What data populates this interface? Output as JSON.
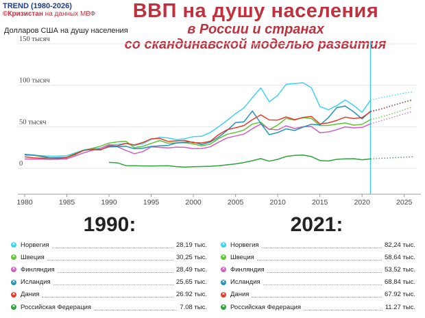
{
  "brand": {
    "line1": "TREND (1980-2026)",
    "line2_strong": "©Кризистан",
    "line2_rest": " на данных МВФ"
  },
  "title": {
    "main": "ВВП на душу населения",
    "sub1": "в России и странах",
    "sub2": "со скандинавской моделью развития"
  },
  "colors": {
    "norway": "#3dd2f0",
    "sweden": "#5cc430",
    "finland": "#cc5fbf",
    "iceland": "#1e93b8",
    "denmark": "#e33a2b",
    "russia": "#2aa43a",
    "accent": "#c0313e"
  },
  "chart_data": {
    "type": "line",
    "ylabel": "Долларов США на душу населения",
    "ylim": [
      0,
      150
    ],
    "xlim": [
      1980,
      2026
    ],
    "x_ticks": [
      "1980",
      "1985",
      "1990",
      "1995",
      "2000",
      "2005",
      "2010",
      "2015",
      "2020",
      "2025"
    ],
    "y_ticks": [
      {
        "value": 0,
        "label": "0"
      },
      {
        "value": 50,
        "label": "50 тысяч"
      },
      {
        "value": 100,
        "label": "100 тысяч"
      },
      {
        "value": 150,
        "label": "150 тысяч"
      }
    ],
    "forecast_from": 2021,
    "x": [
      1980,
      1981,
      1982,
      1983,
      1984,
      1985,
      1986,
      1987,
      1988,
      1989,
      1990,
      1991,
      1992,
      1993,
      1994,
      1995,
      1996,
      1997,
      1998,
      1999,
      2000,
      2001,
      2002,
      2003,
      2004,
      2005,
      2006,
      2007,
      2008,
      2009,
      2010,
      2011,
      2012,
      2013,
      2014,
      2015,
      2016,
      2017,
      2018,
      2019,
      2020,
      2021,
      2022,
      2023,
      2024,
      2025,
      2026
    ],
    "series": [
      {
        "key": "norway",
        "values": [
          15.8,
          15.5,
          15.0,
          14.5,
          14.6,
          15.2,
          18.5,
          22.0,
          23.5,
          24.0,
          28.2,
          28.5,
          30.0,
          27.5,
          29.5,
          34.8,
          37.3,
          36.6,
          34.3,
          35.6,
          38.1,
          38.6,
          43.1,
          50.1,
          57.6,
          65.8,
          72.8,
          85.1,
          96.9,
          80.0,
          87.7,
          101.2,
          102.1,
          103.0,
          97.0,
          74.4,
          70.5,
          75.5,
          82.3,
          75.7,
          67.4,
          82.2,
          84.5,
          86.5,
          88.5,
          90.5,
          92.0
        ]
      },
      {
        "key": "sweden",
        "values": [
          16.9,
          15.8,
          13.9,
          12.5,
          12.8,
          13.3,
          17.9,
          21.5,
          24.0,
          26.5,
          30.3,
          31.7,
          32.5,
          24.8,
          26.4,
          29.9,
          33.4,
          30.2,
          30.4,
          30.7,
          29.3,
          26.9,
          29.1,
          35.8,
          41.0,
          43.1,
          46.1,
          53.3,
          55.5,
          46.5,
          52.1,
          60.0,
          58.0,
          61.0,
          60.0,
          51.5,
          51.6,
          53.2,
          54.6,
          51.9,
          52.8,
          58.6,
          61.0,
          64.0,
          67.0,
          70.5,
          74.0
        ]
      },
      {
        "key": "finland",
        "values": [
          11.2,
          11.0,
          11.0,
          10.5,
          10.8,
          11.3,
          14.8,
          18.5,
          21.5,
          24.0,
          28.5,
          26.0,
          21.5,
          17.5,
          20.0,
          25.7,
          25.1,
          24.5,
          25.5,
          25.2,
          23.6,
          23.8,
          25.8,
          31.5,
          36.5,
          38.9,
          41.1,
          47.6,
          53.4,
          47.0,
          46.2,
          51.1,
          47.8,
          50.0,
          50.3,
          42.8,
          43.8,
          46.4,
          49.9,
          48.6,
          49.2,
          53.5,
          56.5,
          59.5,
          62.5,
          65.5,
          68.5
        ]
      },
      {
        "key": "iceland",
        "values": [
          16.3,
          16.0,
          14.5,
          12.5,
          12.8,
          13.0,
          16.5,
          21.5,
          23.0,
          22.5,
          25.7,
          26.0,
          26.5,
          23.5,
          24.0,
          26.3,
          27.0,
          27.5,
          30.5,
          31.5,
          31.5,
          28.5,
          31.5,
          37.5,
          45.5,
          55.0,
          56.0,
          69.0,
          54.0,
          40.5,
          43.0,
          47.5,
          45.5,
          49.5,
          53.0,
          52.0,
          61.0,
          73.0,
          75.0,
          68.0,
          59.5,
          68.8,
          71.0,
          74.0,
          77.0,
          80.0,
          83.0
        ]
      },
      {
        "key": "denmark",
        "values": [
          13.8,
          12.5,
          12.0,
          12.0,
          11.9,
          12.7,
          17.2,
          21.5,
          22.5,
          22.0,
          26.9,
          27.0,
          30.0,
          28.0,
          31.0,
          35.4,
          35.9,
          32.4,
          33.0,
          33.5,
          30.8,
          30.5,
          32.5,
          40.5,
          46.5,
          48.8,
          51.5,
          58.5,
          64.4,
          58.2,
          58.0,
          61.8,
          58.5,
          61.2,
          62.5,
          53.3,
          54.7,
          57.6,
          61.6,
          59.8,
          61.1,
          67.9,
          70.5,
          73.5,
          76.5,
          79.5,
          82.0
        ]
      },
      {
        "key": "russia",
        "values": [
          null,
          null,
          null,
          null,
          null,
          null,
          null,
          null,
          null,
          null,
          7.08,
          6.5,
          3.1,
          3.0,
          2.8,
          2.7,
          2.9,
          3.0,
          2.0,
          1.3,
          1.8,
          2.1,
          2.4,
          3.0,
          4.1,
          5.3,
          6.9,
          9.1,
          11.6,
          8.5,
          10.7,
          14.2,
          15.4,
          15.9,
          14.1,
          9.3,
          8.7,
          10.7,
          11.3,
          11.5,
          10.2,
          11.27,
          11.8,
          12.3,
          12.8,
          13.3,
          13.8
        ]
      }
    ]
  },
  "panels": [
    {
      "year": "1990:",
      "rows": [
        {
          "key": "norway",
          "name": "Норвегия",
          "value": "28,19 тыс."
        },
        {
          "key": "sweden",
          "name": "Швеция",
          "value": "30,25 тыс."
        },
        {
          "key": "finland",
          "name": "Финляндия",
          "value": "28,49 тыс."
        },
        {
          "key": "iceland",
          "name": "Исландия",
          "value": "25,65 тыс."
        },
        {
          "key": "denmark",
          "name": "Дания",
          "value": "26.92 тыс."
        },
        {
          "key": "russia",
          "name": "Российская Федерация",
          "value": "7.08 тыс."
        }
      ]
    },
    {
      "year": "2021:",
      "rows": [
        {
          "key": "norway",
          "name": "Норвегия",
          "value": "82,24 тыс."
        },
        {
          "key": "sweden",
          "name": "Швеция",
          "value": "58,64 тыс."
        },
        {
          "key": "finland",
          "name": "Финляндия",
          "value": "53,52 тыс."
        },
        {
          "key": "iceland",
          "name": "Исландия",
          "value": "68,84 тыс."
        },
        {
          "key": "denmark",
          "name": "Дания",
          "value": "67.92 тыс."
        },
        {
          "key": "russia",
          "name": "Российская Федерация",
          "value": "11.27 тыс."
        }
      ]
    }
  ]
}
